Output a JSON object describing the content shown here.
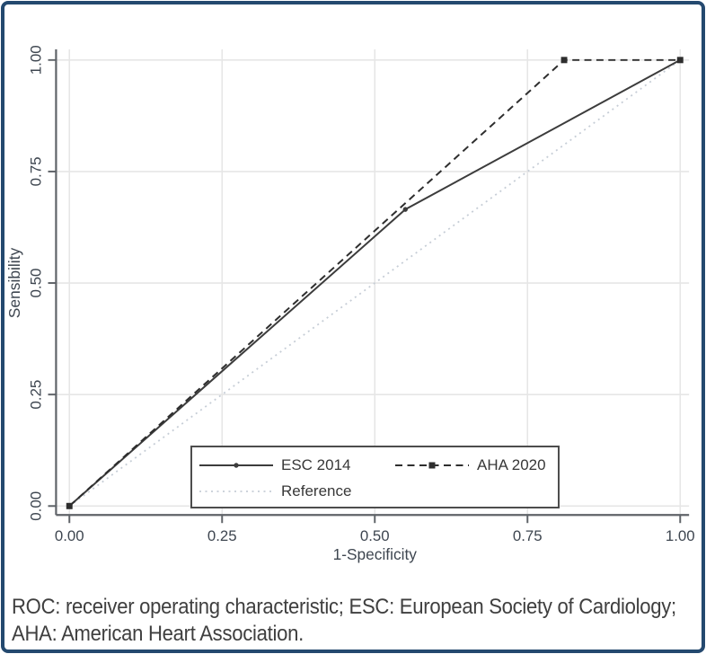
{
  "card": {
    "border_color": "#24496f",
    "background": "#ffffff"
  },
  "chart_data": {
    "type": "line",
    "title": "",
    "xlabel": "1-Specificity",
    "ylabel": "Sensibility",
    "xlim": [
      0,
      1
    ],
    "ylim": [
      0,
      1
    ],
    "xticks": [
      0,
      0.25,
      0.5,
      0.75,
      1
    ],
    "yticks": [
      0,
      0.25,
      0.5,
      0.75,
      1
    ],
    "tick_decimals": 2,
    "grid": true,
    "legend_position": "inside-bottom-center",
    "draw_order": [
      2,
      0,
      1
    ],
    "colors": {
      "grid": "#e6e6e6",
      "axis": "#5f6368",
      "tick_text": "#3e4650"
    },
    "series": [
      {
        "name": "ESC 2014",
        "style": "solid",
        "marker": "circle",
        "color": "#3c3c3c",
        "width": 2,
        "points": [
          [
            0,
            0
          ],
          [
            0.55,
            0.665
          ],
          [
            1,
            1
          ]
        ]
      },
      {
        "name": "AHA 2020",
        "style": "dashed",
        "marker": "square",
        "color": "#2e2e2e",
        "width": 2,
        "points": [
          [
            0,
            0
          ],
          [
            0.81,
            1
          ],
          [
            1,
            1
          ]
        ]
      },
      {
        "name": "Reference",
        "style": "dotted",
        "marker": "none",
        "color": "#c6cdd6",
        "width": 1.8,
        "points": [
          [
            0,
            0
          ],
          [
            1,
            1
          ]
        ]
      }
    ]
  },
  "caption": {
    "line1": "ROC: receiver operating characteristic; ESC: European Society of Cardiology;",
    "line2": "AHA: American Heart Association."
  }
}
